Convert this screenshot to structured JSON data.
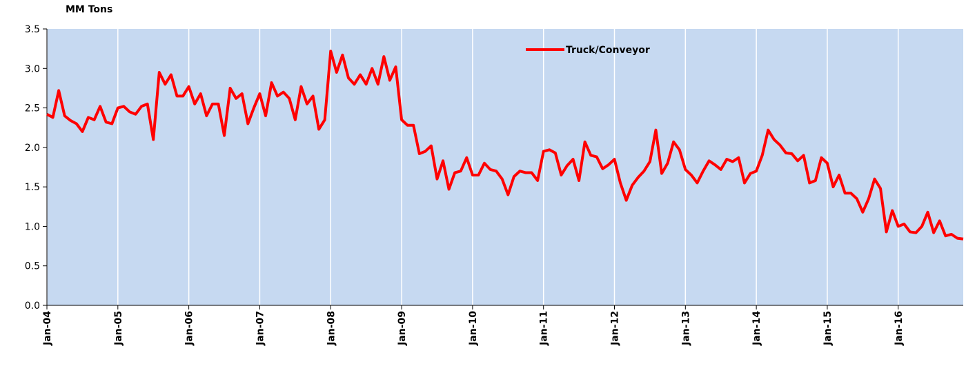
{
  "chart_data": {
    "type": "line",
    "y_axis_label": "MM Tons",
    "categories": [
      "Jan-04",
      null,
      null,
      null,
      null,
      null,
      null,
      null,
      null,
      null,
      null,
      null,
      "Jan-05",
      null,
      null,
      null,
      null,
      null,
      null,
      null,
      null,
      null,
      null,
      null,
      "Jan-06",
      null,
      null,
      null,
      null,
      null,
      null,
      null,
      null,
      null,
      null,
      null,
      "Jan-07",
      null,
      null,
      null,
      null,
      null,
      null,
      null,
      null,
      null,
      null,
      null,
      "Jan-08",
      null,
      null,
      null,
      null,
      null,
      null,
      null,
      null,
      null,
      null,
      null,
      "Jan-09",
      null,
      null,
      null,
      null,
      null,
      null,
      null,
      null,
      null,
      null,
      null,
      "Jan-10",
      null,
      null,
      null,
      null,
      null,
      null,
      null,
      null,
      null,
      null,
      null,
      "Jan-11",
      null,
      null,
      null,
      null,
      null,
      null,
      null,
      null,
      null,
      null,
      null,
      "Jan-12",
      null,
      null,
      null,
      null,
      null,
      null,
      null,
      null,
      null,
      null,
      null,
      "Jan-13",
      null,
      null,
      null,
      null,
      null,
      null,
      null,
      null,
      null,
      null,
      null,
      "Jan-14",
      null,
      null,
      null,
      null,
      null,
      null,
      null,
      null,
      null,
      null,
      null,
      "Jan-15",
      null,
      null,
      null,
      null,
      null,
      null,
      null,
      null,
      null,
      null,
      null,
      "Jan-16",
      null,
      null,
      null,
      null,
      null,
      null,
      null,
      null,
      null,
      null,
      null
    ],
    "series": [
      {
        "name": "Truck/Conveyor",
        "color": "#ff0000",
        "values": [
          2.42,
          2.38,
          2.72,
          2.4,
          2.34,
          2.3,
          2.2,
          2.38,
          2.35,
          2.52,
          2.32,
          2.3,
          2.5,
          2.52,
          2.45,
          2.42,
          2.52,
          2.55,
          2.1,
          2.95,
          2.8,
          2.92,
          2.65,
          2.65,
          2.77,
          2.55,
          2.68,
          2.4,
          2.55,
          2.55,
          2.15,
          2.75,
          2.62,
          2.68,
          2.3,
          2.5,
          2.68,
          2.4,
          2.82,
          2.65,
          2.7,
          2.62,
          2.35,
          2.77,
          2.55,
          2.65,
          2.23,
          2.35,
          3.22,
          2.95,
          3.17,
          2.88,
          2.8,
          2.92,
          2.8,
          3.0,
          2.8,
          3.15,
          2.85,
          3.02,
          2.35,
          2.28,
          2.28,
          1.92,
          1.95,
          2.02,
          1.6,
          1.83,
          1.47,
          1.68,
          1.7,
          1.87,
          1.65,
          1.65,
          1.8,
          1.72,
          1.7,
          1.6,
          1.4,
          1.63,
          1.7,
          1.68,
          1.68,
          1.58,
          1.95,
          1.97,
          1.93,
          1.65,
          1.77,
          1.85,
          1.58,
          2.07,
          1.9,
          1.88,
          1.73,
          1.78,
          1.85,
          1.55,
          1.33,
          1.52,
          1.62,
          1.7,
          1.82,
          2.22,
          1.67,
          1.8,
          2.07,
          1.97,
          1.72,
          1.65,
          1.55,
          1.7,
          1.83,
          1.78,
          1.72,
          1.85,
          1.82,
          1.87,
          1.55,
          1.67,
          1.7,
          1.9,
          2.22,
          2.1,
          2.03,
          1.93,
          1.92,
          1.83,
          1.9,
          1.55,
          1.58,
          1.87,
          1.8,
          1.5,
          1.65,
          1.42,
          1.42,
          1.35,
          1.18,
          1.35,
          1.6,
          1.48,
          0.93,
          1.2,
          1.0,
          1.03,
          0.93,
          0.92,
          1.0,
          1.18,
          0.92,
          1.07,
          0.88,
          0.9,
          0.85,
          0.84
        ]
      }
    ],
    "ylim": [
      0,
      3.5
    ],
    "yticks": [
      {
        "value": 0,
        "label": "0.0"
      },
      0.5,
      {
        "value": 1,
        "label": "1.0"
      },
      1.5,
      {
        "value": 2,
        "label": "2.0"
      },
      2.5,
      {
        "value": 3,
        "label": "3.0"
      },
      3.5
    ],
    "x_grid": true,
    "legend": "top-center"
  }
}
